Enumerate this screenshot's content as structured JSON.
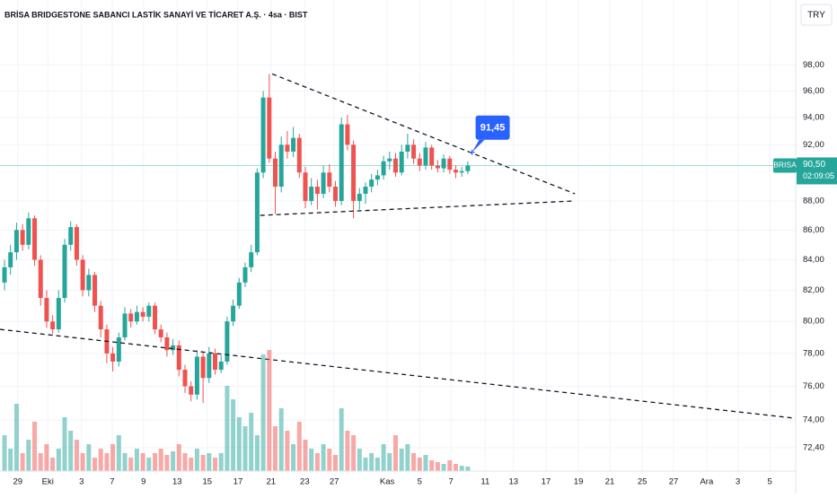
{
  "chart_data": {
    "type": "candlestick",
    "title": "BRİSA BRIDGESTONE SABANCI LASTİK SANAYİ VE TİCARET A.Ş. · 4sa · BIST",
    "currency": "TRY",
    "symbol": "BRISA",
    "last_price": {
      "value": 90.5,
      "label": "90,50"
    },
    "countdown": "02:09:05",
    "log_scale": true,
    "grid": true,
    "up_color": "#26a69a",
    "down_color": "#ef5350",
    "ylim": [
      71.07,
      103.16
    ],
    "yticks": [
      {
        "value": 98,
        "label": "98,00"
      },
      {
        "value": 96,
        "label": "96,00"
      },
      {
        "value": 94,
        "label": "94,00"
      },
      {
        "value": 92,
        "label": "92,00"
      },
      {
        "value": 88,
        "label": "88,00"
      },
      {
        "value": 86,
        "label": "86,00"
      },
      {
        "value": 84,
        "label": "84,00"
      },
      {
        "value": 82,
        "label": "82,00"
      },
      {
        "value": 80,
        "label": "80,00"
      },
      {
        "value": 78,
        "label": "78,00"
      },
      {
        "value": 76,
        "label": "76,00"
      },
      {
        "value": 74,
        "label": "74,00"
      },
      {
        "value": 72.4,
        "label": "72,40"
      }
    ],
    "xlim": [
      -0.75,
      131.5
    ],
    "xticks": [
      {
        "value": 2.2,
        "label": "29"
      },
      {
        "value": 7.2,
        "label": "Eki"
      },
      {
        "value": 12.8,
        "label": "3"
      },
      {
        "value": 17.9,
        "label": "7"
      },
      {
        "value": 23.1,
        "label": "9"
      },
      {
        "value": 28.7,
        "label": "13"
      },
      {
        "value": 33.7,
        "label": "15"
      },
      {
        "value": 38.8,
        "label": "17"
      },
      {
        "value": 44.3,
        "label": "21"
      },
      {
        "value": 49.9,
        "label": "23"
      },
      {
        "value": 54.8,
        "label": "27"
      },
      {
        "value": 63.6,
        "label": "Kas"
      },
      {
        "value": 69,
        "label": "5"
      },
      {
        "value": 74.2,
        "label": "7"
      },
      {
        "value": 79.9,
        "label": "11"
      },
      {
        "value": 84.6,
        "label": "13"
      },
      {
        "value": 90,
        "label": "17"
      },
      {
        "value": 95.4,
        "label": "19"
      },
      {
        "value": 100.6,
        "label": "21"
      },
      {
        "value": 106,
        "label": "25"
      },
      {
        "value": 111.2,
        "label": "27"
      },
      {
        "value": 116.7,
        "label": "Ara"
      },
      {
        "value": 121.9,
        "label": "3"
      },
      {
        "value": 127.2,
        "label": "5"
      }
    ],
    "open": [
      82.5,
      83.5,
      84.5,
      86,
      85,
      86.8,
      84,
      81.5,
      80,
      79.5,
      81.5,
      85,
      86.2,
      84,
      82,
      83,
      81,
      79.5,
      78,
      77.5,
      79,
      80.5,
      80,
      80.6,
      80.3,
      81,
      79.5,
      79,
      78.2,
      78.5,
      77,
      76,
      75.5,
      77.8,
      76.5,
      78,
      77,
      77.5,
      80,
      81,
      82.5,
      83.5,
      84.5,
      90,
      95.5,
      91,
      89,
      92,
      91.5,
      92.5,
      90,
      88,
      89,
      88.5,
      90,
      89,
      88,
      93.5,
      92,
      88,
      88.5,
      89,
      89.5,
      89.8,
      90.8,
      91,
      90,
      91.5,
      92,
      91,
      90.5,
      91.8,
      90.5,
      90.3,
      91,
      90.2,
      90,
      90.1
    ],
    "high": [
      84,
      85,
      86.5,
      86.4,
      87.2,
      87,
      84.3,
      82,
      80.4,
      82,
      85.4,
      86.6,
      86.4,
      84.3,
      83.4,
      83.2,
      81.3,
      79.8,
      78.4,
      79.3,
      80.9,
      80.8,
      81,
      80.9,
      81.2,
      81.2,
      79.8,
      79.3,
      78.9,
      78.8,
      77.3,
      76.3,
      78.2,
      78.1,
      78.4,
      78.3,
      77.9,
      80.3,
      81.4,
      82.8,
      83.8,
      85,
      90.3,
      96,
      97.3,
      91.5,
      92.6,
      93,
      93.3,
      92.8,
      90.4,
      89.6,
      89.5,
      90.5,
      90.6,
      89.4,
      94,
      94.2,
      92.3,
      88.9,
      89.3,
      89.9,
      90.2,
      91.2,
      91.5,
      91.4,
      92,
      92.8,
      92.4,
      91.4,
      92.2,
      92,
      90.9,
      91.3,
      91.2,
      90.5,
      90.4,
      90.8
    ],
    "low": [
      82,
      83,
      84,
      84.6,
      84.7,
      83.6,
      81,
      79.6,
      79.2,
      79.3,
      81.2,
      84.6,
      83.6,
      81.6,
      81.6,
      80.6,
      79,
      77.4,
      76.9,
      77.2,
      78.8,
      79.6,
      79.8,
      80,
      80,
      79.2,
      78.7,
      77.8,
      77.9,
      76.6,
      75.6,
      75.1,
      75.2,
      75,
      76.2,
      76.7,
      76.8,
      77.3,
      79.7,
      80.8,
      82.2,
      83.2,
      84.3,
      89.6,
      90.7,
      87.1,
      88.6,
      91,
      91.1,
      89.6,
      87.5,
      87.7,
      87.4,
      88.2,
      88.6,
      87.6,
      87.7,
      91.6,
      86.8,
      87.4,
      87.8,
      88.6,
      89.1,
      89.5,
      90.2,
      89.7,
      89.8,
      91,
      90.6,
      90.1,
      90.2,
      90.2,
      90,
      90,
      89.9,
      89.6,
      89.7,
      89.9
    ],
    "close": [
      83.5,
      84.5,
      86,
      85,
      86.8,
      84,
      81.5,
      80,
      79.5,
      81.5,
      85,
      86.2,
      84,
      82,
      83,
      81,
      79.5,
      78,
      77.5,
      79,
      80.5,
      80,
      80.6,
      80.3,
      81,
      79.5,
      79,
      78.2,
      78.5,
      77,
      76,
      75.5,
      77.8,
      76.5,
      78,
      77,
      77.5,
      80,
      81,
      82.5,
      83.5,
      84.5,
      90,
      95.5,
      91,
      89,
      92,
      91.5,
      92.5,
      90,
      88,
      89,
      88.5,
      90,
      89,
      88,
      93.5,
      92,
      88,
      88.5,
      89,
      89.5,
      89.8,
      90.8,
      91,
      90,
      91.5,
      92,
      91,
      90.5,
      91.8,
      90.5,
      90.3,
      91,
      90.2,
      90,
      90.1,
      90.5
    ],
    "volume": [
      40,
      25,
      75,
      20,
      35,
      55,
      20,
      30,
      15,
      25,
      60,
      45,
      35,
      20,
      30,
      15,
      25,
      20,
      30,
      40,
      20,
      15,
      25,
      20,
      15,
      20,
      25,
      18,
      22,
      30,
      20,
      15,
      25,
      18,
      20,
      15,
      20,
      95,
      80,
      60,
      50,
      65,
      40,
      130,
      135,
      50,
      70,
      45,
      30,
      55,
      35,
      25,
      20,
      30,
      25,
      18,
      70,
      45,
      40,
      25,
      15,
      20,
      15,
      30,
      20,
      40,
      25,
      30,
      20,
      15,
      18,
      12,
      10,
      8,
      12,
      8,
      6,
      5
    ],
    "trendlines": [
      {
        "points": [
          [
            44.5,
            97.3
          ],
          [
            94.8,
            88.5
          ]
        ]
      },
      {
        "points": [
          [
            42.5,
            87.0
          ],
          [
            94.8,
            88.0
          ]
        ]
      },
      {
        "points": [
          [
            -0.75,
            79.5
          ],
          [
            131.5,
            74.1
          ]
        ]
      }
    ],
    "callout": {
      "value": 91.45,
      "label": "91,45"
    }
  }
}
